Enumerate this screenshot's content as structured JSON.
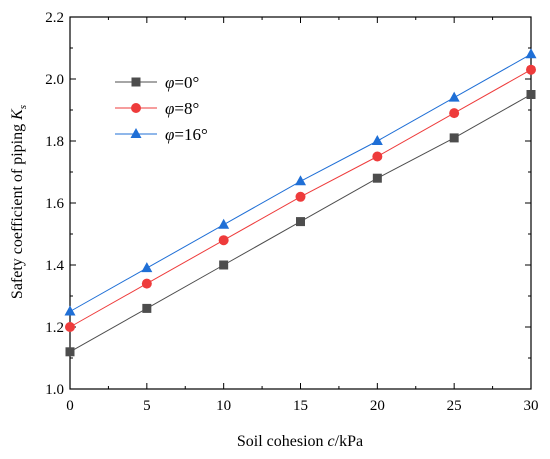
{
  "chart_data": {
    "type": "line",
    "x": [
      0,
      5,
      10,
      15,
      20,
      25,
      30
    ],
    "xlim": [
      0,
      30
    ],
    "ylim": [
      1.0,
      2.2
    ],
    "xticks": [
      "0",
      "5",
      "10",
      "15",
      "20",
      "25",
      "30"
    ],
    "yticks": [
      "1.0",
      "1.2",
      "1.4",
      "1.6",
      "1.8",
      "2.0",
      "2.2"
    ],
    "xlabel_pre": "Soil cohesion ",
    "xlabel_var": "c",
    "xlabel_post": "/kPa",
    "ylabel_pre": "Safety coefficient of piping  ",
    "ylabel_var": "K",
    "ylabel_sub": "s",
    "grid": false,
    "legend_position": "top-left",
    "series": [
      {
        "name_var": "φ",
        "name_rest": "=0°",
        "marker": "square",
        "color": "#4d4d4d",
        "values": [
          1.12,
          1.26,
          1.4,
          1.54,
          1.68,
          1.81,
          1.95
        ]
      },
      {
        "name_var": "φ",
        "name_rest": "=8°",
        "marker": "circle",
        "color": "#ee3b3b",
        "values": [
          1.2,
          1.34,
          1.48,
          1.62,
          1.75,
          1.89,
          2.03
        ]
      },
      {
        "name_var": "φ",
        "name_rest": "=16°",
        "marker": "triangle",
        "color": "#1f6fd6",
        "values": [
          1.25,
          1.39,
          1.53,
          1.67,
          1.8,
          1.94,
          2.08
        ]
      }
    ]
  }
}
